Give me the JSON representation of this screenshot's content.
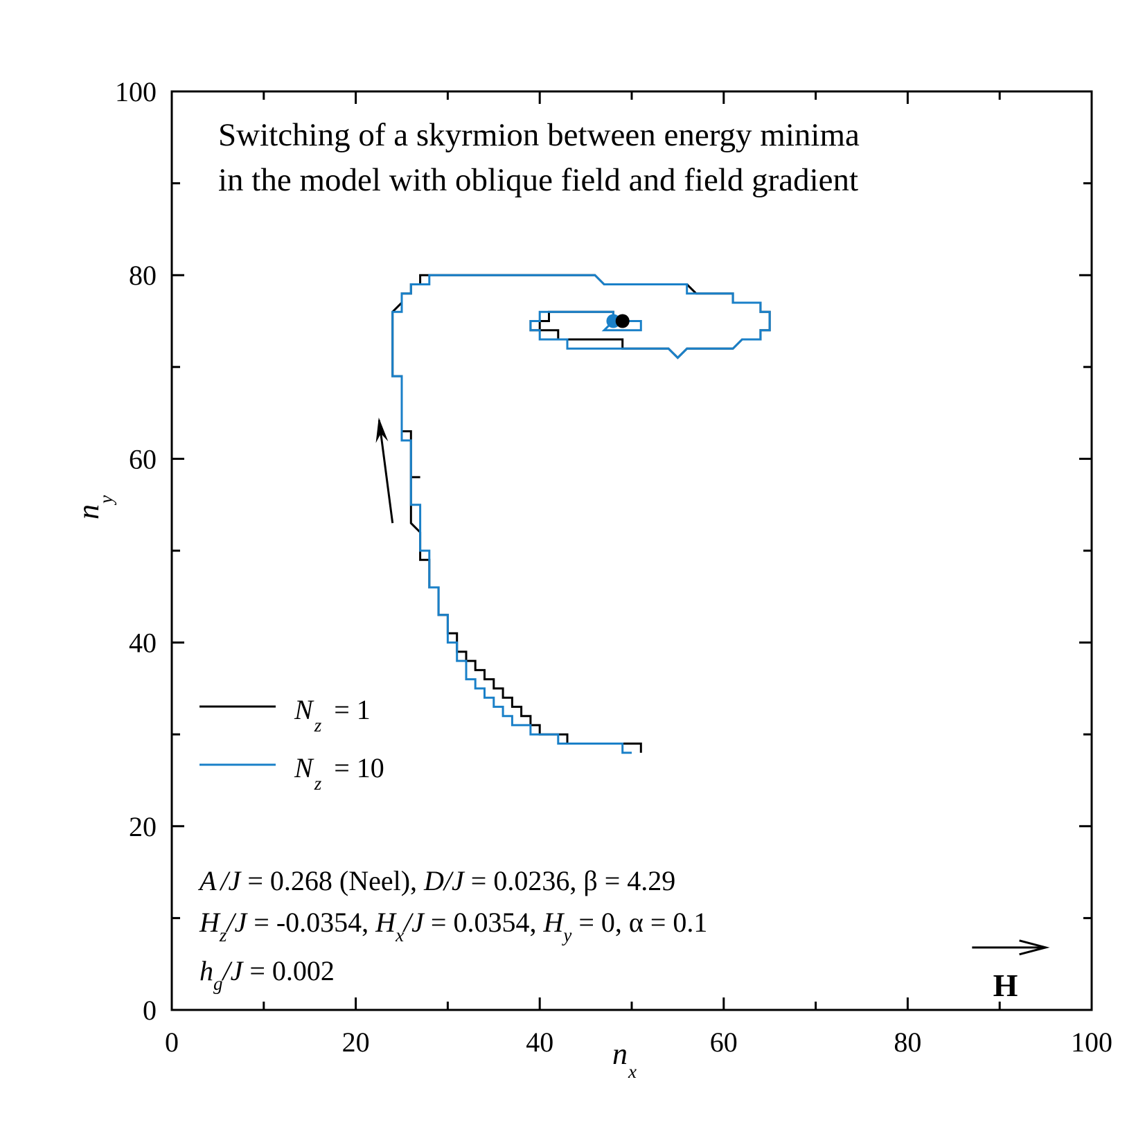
{
  "chart_data": {
    "type": "line",
    "title_lines": [
      "Switching of a skyrmion between energy minima",
      "in the model with oblique field and field gradient"
    ],
    "xlabel": {
      "main": "n",
      "sub": "x"
    },
    "ylabel": {
      "main": "n",
      "sub": "y"
    },
    "xlim": [
      0,
      100
    ],
    "ylim": [
      0,
      100
    ],
    "xticks": [
      "0",
      "20",
      "40",
      "60",
      "80",
      "100"
    ],
    "yticks": [
      "0",
      "20",
      "40",
      "60",
      "80",
      "100"
    ],
    "legend_position": "left-middle",
    "series": [
      {
        "name": "N_z = 1",
        "label": {
          "main": "N",
          "sub": "z",
          "rest": "= 1"
        },
        "color": "#000000",
        "end_point": [
          49,
          75
        ],
        "points": [
          [
            51,
            28
          ],
          [
            51,
            29
          ],
          [
            43,
            29
          ],
          [
            43,
            30
          ],
          [
            40,
            30
          ],
          [
            40,
            31
          ],
          [
            39,
            31
          ],
          [
            39,
            32
          ],
          [
            38,
            32
          ],
          [
            38,
            33
          ],
          [
            37,
            33
          ],
          [
            37,
            34
          ],
          [
            36,
            34
          ],
          [
            36,
            35
          ],
          [
            35,
            35
          ],
          [
            35,
            36
          ],
          [
            34,
            36
          ],
          [
            34,
            37
          ],
          [
            33,
            37
          ],
          [
            33,
            38
          ],
          [
            32,
            38
          ],
          [
            32,
            39
          ],
          [
            31,
            39
          ],
          [
            31,
            41
          ],
          [
            30,
            41
          ],
          [
            30,
            43
          ],
          [
            29,
            43
          ],
          [
            29,
            46
          ],
          [
            28,
            46
          ],
          [
            28,
            49
          ],
          [
            27,
            49
          ],
          [
            27,
            52
          ],
          [
            26,
            53
          ],
          [
            26,
            58
          ],
          [
            27,
            58
          ],
          [
            27,
            58
          ],
          [
            26,
            58
          ],
          [
            26,
            63
          ],
          [
            25,
            63
          ],
          [
            25,
            69
          ],
          [
            24,
            69
          ],
          [
            24,
            76
          ],
          [
            25,
            77
          ],
          [
            25,
            78
          ],
          [
            26,
            78
          ],
          [
            26,
            79
          ],
          [
            27,
            79
          ],
          [
            27,
            80
          ],
          [
            46,
            80
          ],
          [
            47,
            79
          ],
          [
            56,
            79
          ],
          [
            57,
            78
          ],
          [
            61,
            78
          ],
          [
            61,
            77
          ],
          [
            64,
            77
          ],
          [
            64,
            76
          ],
          [
            65,
            76
          ],
          [
            65,
            74
          ],
          [
            64,
            74
          ],
          [
            64,
            73
          ],
          [
            62,
            73
          ],
          [
            61,
            72
          ],
          [
            56,
            72
          ],
          [
            55,
            71
          ],
          [
            54,
            72
          ],
          [
            49,
            72
          ],
          [
            49,
            73
          ],
          [
            43,
            73
          ],
          [
            43,
            73
          ],
          [
            42,
            73
          ],
          [
            42,
            74
          ],
          [
            40,
            74
          ],
          [
            40,
            75
          ],
          [
            39,
            75
          ],
          [
            39,
            74
          ],
          [
            40,
            74
          ],
          [
            40,
            75
          ],
          [
            41,
            75
          ],
          [
            41,
            76
          ],
          [
            48,
            76
          ],
          [
            48,
            75
          ],
          [
            49,
            75
          ]
        ]
      },
      {
        "name": "N_z = 10",
        "label": {
          "main": "N",
          "sub": "z",
          "rest": "= 10"
        },
        "color": "#1a80c8",
        "end_point": [
          48,
          75
        ],
        "points": [
          [
            50,
            28
          ],
          [
            49,
            28
          ],
          [
            49,
            29
          ],
          [
            42,
            29
          ],
          [
            42,
            30
          ],
          [
            39,
            30
          ],
          [
            39,
            31
          ],
          [
            37,
            31
          ],
          [
            37,
            32
          ],
          [
            36,
            32
          ],
          [
            36,
            33
          ],
          [
            35,
            33
          ],
          [
            35,
            34
          ],
          [
            34,
            34
          ],
          [
            34,
            35
          ],
          [
            33,
            35
          ],
          [
            33,
            36
          ],
          [
            32,
            36
          ],
          [
            32,
            38
          ],
          [
            31,
            38
          ],
          [
            31,
            40
          ],
          [
            30,
            40
          ],
          [
            30,
            43
          ],
          [
            29,
            43
          ],
          [
            29,
            46
          ],
          [
            28,
            46
          ],
          [
            28,
            50
          ],
          [
            27,
            50
          ],
          [
            27,
            55
          ],
          [
            26,
            55
          ],
          [
            26,
            62
          ],
          [
            25,
            62
          ],
          [
            25,
            69
          ],
          [
            24,
            69
          ],
          [
            24,
            76
          ],
          [
            25,
            76
          ],
          [
            25,
            78
          ],
          [
            26,
            78
          ],
          [
            26,
            79
          ],
          [
            28,
            79
          ],
          [
            28,
            80
          ],
          [
            46,
            80
          ],
          [
            47,
            79
          ],
          [
            56,
            79
          ],
          [
            56,
            78
          ],
          [
            61,
            78
          ],
          [
            61,
            77
          ],
          [
            64,
            77
          ],
          [
            64,
            76
          ],
          [
            65,
            76
          ],
          [
            65,
            74
          ],
          [
            64,
            74
          ],
          [
            64,
            73
          ],
          [
            62,
            73
          ],
          [
            61,
            72
          ],
          [
            56,
            72
          ],
          [
            55,
            71
          ],
          [
            54,
            72
          ],
          [
            43,
            72
          ],
          [
            43,
            73
          ],
          [
            40,
            73
          ],
          [
            40,
            74
          ],
          [
            39,
            74
          ],
          [
            39,
            75
          ],
          [
            40,
            75
          ],
          [
            40,
            76
          ],
          [
            48,
            76
          ],
          [
            48,
            75
          ],
          [
            47,
            74
          ],
          [
            51,
            74
          ],
          [
            51,
            75
          ],
          [
            48,
            75
          ]
        ]
      }
    ],
    "direction_arrow": {
      "from": [
        24,
        53
      ],
      "to": [
        22.5,
        64.5
      ]
    },
    "field_arrow": {
      "from": [
        87,
        6.8
      ],
      "to": [
        95,
        6.8
      ],
      "label": "H"
    },
    "parameters": [
      [
        "A",
        "/J",
        " = 0.268 (Neel), ",
        "D/J",
        " = 0.0236,  β = 4.29"
      ],
      [
        "H",
        "z",
        "/J",
        " = -0.0354, ",
        "H",
        "x",
        "/J",
        " = 0.0354, ",
        "H",
        "y",
        " = 0,  α = 0.1"
      ],
      [
        "h",
        "g",
        "/J",
        " = 0.002"
      ]
    ]
  }
}
